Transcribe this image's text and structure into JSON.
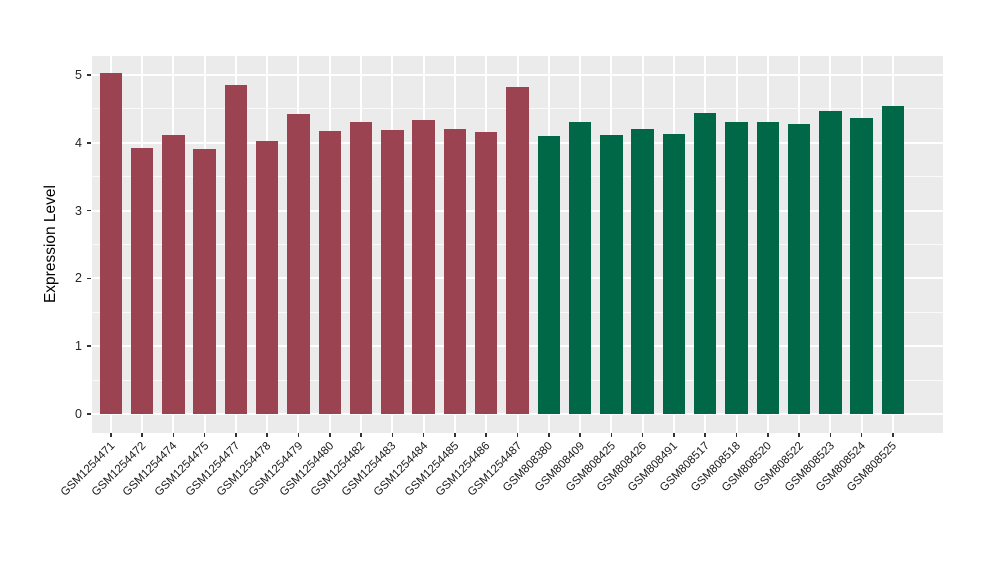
{
  "chart_data": {
    "type": "bar",
    "title": "",
    "xlabel": "",
    "ylabel": "Expression Level",
    "ylim": [
      0,
      5.28
    ],
    "yticks": [
      "0",
      "1",
      "2",
      "3",
      "4",
      "5"
    ],
    "grid": "white major+minor horizontal lines and major vertical lines on gray panel",
    "legend_position": "none",
    "panel_background": "#EBEBEB",
    "grid_color": "#FFFFFF",
    "axis_text_color": "#1A1A1A",
    "group_colors": {
      "maroon": "#9C4351",
      "green": "#006747"
    },
    "categories": [
      "GSM1254471",
      "GSM1254472",
      "GSM1254474",
      "GSM1254475",
      "GSM1254477",
      "GSM1254478",
      "GSM1254479",
      "GSM1254480",
      "GSM1254482",
      "GSM1254483",
      "GSM1254484",
      "GSM1254485",
      "GSM1254486",
      "GSM1254487",
      "GSM808380",
      "GSM808409",
      "GSM808425",
      "GSM808426",
      "GSM808491",
      "GSM808517",
      "GSM808518",
      "GSM808520",
      "GSM808522",
      "GSM808523",
      "GSM808524",
      "GSM808525"
    ],
    "values": [
      5.03,
      3.92,
      4.12,
      3.91,
      4.85,
      4.03,
      4.42,
      4.17,
      4.31,
      4.19,
      4.34,
      4.21,
      4.16,
      4.83,
      4.1,
      4.3,
      4.12,
      4.2,
      4.13,
      4.44,
      4.3,
      4.3,
      4.28,
      4.47,
      4.37,
      4.54
    ],
    "groups": [
      "maroon",
      "maroon",
      "maroon",
      "maroon",
      "maroon",
      "maroon",
      "maroon",
      "maroon",
      "maroon",
      "maroon",
      "maroon",
      "maroon",
      "maroon",
      "maroon",
      "green",
      "green",
      "green",
      "green",
      "green",
      "green",
      "green",
      "green",
      "green",
      "green",
      "green",
      "green"
    ]
  }
}
